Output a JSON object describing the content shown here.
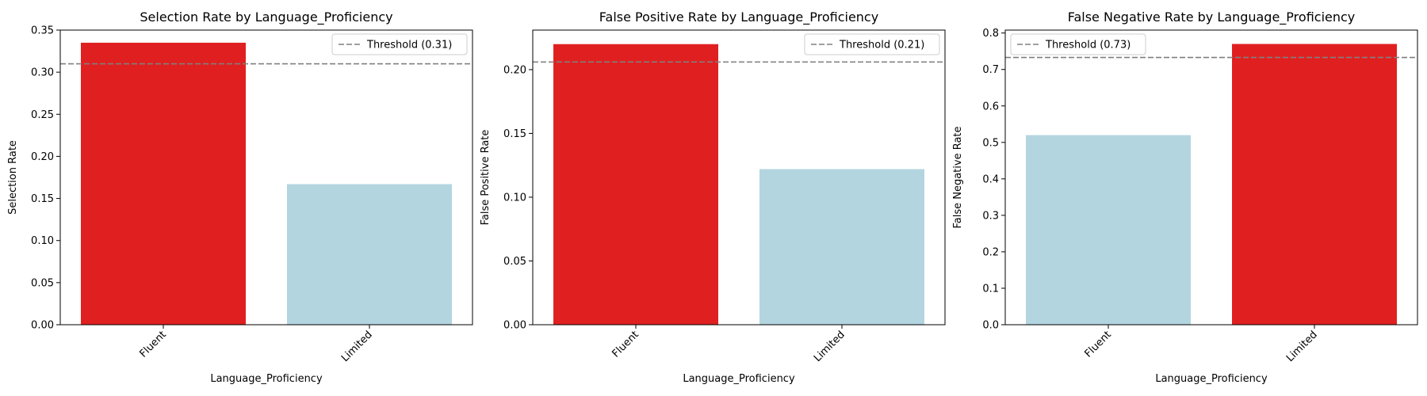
{
  "chart_data": [
    {
      "type": "bar",
      "title": "Selection Rate by Language_Proficiency",
      "xlabel": "Language_Proficiency",
      "ylabel": "Selection Rate",
      "categories": [
        "Fluent",
        "Limited"
      ],
      "values": [
        0.335,
        0.167
      ],
      "bar_colors": [
        "#e02020",
        "#b3d5e0"
      ],
      "ylim": [
        0,
        0.35
      ],
      "yticks": [
        0.0,
        0.05,
        0.1,
        0.15,
        0.2,
        0.25,
        0.3,
        0.35
      ],
      "ytick_labels": [
        "0.00",
        "0.05",
        "0.10",
        "0.15",
        "0.20",
        "0.25",
        "0.30",
        "0.35"
      ],
      "threshold": 0.31,
      "threshold_label": "Threshold (0.31)",
      "legend_position": "top-right",
      "grid": false
    },
    {
      "type": "bar",
      "title": "False Positive Rate by Language_Proficiency",
      "xlabel": "Language_Proficiency",
      "ylabel": "False Positive Rate",
      "categories": [
        "Fluent",
        "Limited"
      ],
      "values": [
        0.22,
        0.122
      ],
      "bar_colors": [
        "#e02020",
        "#b3d5e0"
      ],
      "ylim": [
        0,
        0.231
      ],
      "yticks": [
        0.0,
        0.05,
        0.1,
        0.15,
        0.2
      ],
      "ytick_labels": [
        "0.00",
        "0.05",
        "0.10",
        "0.15",
        "0.20"
      ],
      "threshold": 0.206,
      "threshold_label": "Threshold (0.21)",
      "legend_position": "top-right",
      "grid": false
    },
    {
      "type": "bar",
      "title": "False Negative Rate by Language_Proficiency",
      "xlabel": "Language_Proficiency",
      "ylabel": "False Negative Rate",
      "categories": [
        "Fluent",
        "Limited"
      ],
      "values": [
        0.52,
        0.77
      ],
      "bar_colors": [
        "#b3d5e0",
        "#e02020"
      ],
      "ylim": [
        0,
        0.808
      ],
      "yticks": [
        0.0,
        0.1,
        0.2,
        0.3,
        0.4,
        0.5,
        0.6,
        0.7,
        0.8
      ],
      "ytick_labels": [
        "0.0",
        "0.1",
        "0.2",
        "0.3",
        "0.4",
        "0.5",
        "0.6",
        "0.7",
        "0.8"
      ],
      "threshold": 0.733,
      "threshold_label": "Threshold (0.73)",
      "legend_position": "top-left",
      "grid": false
    }
  ]
}
